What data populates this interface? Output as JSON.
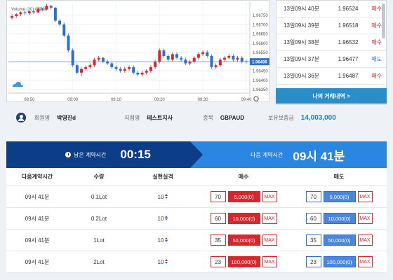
{
  "chart": {
    "legend_text": "Volume (20)",
    "legend_zero": "0",
    "legend_unit": "없음",
    "current_price_label": "1.96499",
    "y_ticks": [
      "1.96750",
      "1.96700",
      "1.96650",
      "1.96600",
      "1.96550",
      "1.96500",
      "1.96450",
      "1.96400",
      "1.96350"
    ],
    "x_ticks": [
      "08:50",
      "09:00",
      "09:10",
      "09:20",
      "09:30",
      "09:40"
    ],
    "colors": {
      "up": "#d8262c",
      "down": "#2b6fd6",
      "price_line": "#2b6fd6"
    },
    "icons": [
      "cloud-icon",
      "settings-icon"
    ]
  },
  "chart_data": {
    "type": "candlestick",
    "x": [
      "08:46",
      "08:47",
      "08:48",
      "08:49",
      "08:50",
      "08:51",
      "08:52",
      "08:53",
      "08:54",
      "08:55",
      "08:56",
      "08:57",
      "08:58",
      "08:59",
      "09:00",
      "09:01",
      "09:02",
      "09:03",
      "09:04",
      "09:05",
      "09:06",
      "09:07",
      "09:08",
      "09:09",
      "09:10",
      "09:11",
      "09:12",
      "09:13",
      "09:14",
      "09:15",
      "09:16",
      "09:17",
      "09:18",
      "09:19",
      "09:20",
      "09:21",
      "09:22",
      "09:23",
      "09:24",
      "09:25",
      "09:26",
      "09:27",
      "09:28",
      "09:29",
      "09:30",
      "09:31",
      "09:32",
      "09:33",
      "09:34",
      "09:35",
      "09:36",
      "09:37",
      "09:38",
      "09:39",
      "09:40"
    ],
    "open": [
      1.96735,
      1.96745,
      1.96755,
      1.96765,
      1.9676,
      1.9677,
      1.96765,
      1.96785,
      1.9678,
      1.968,
      1.9679,
      1.9672,
      1.967,
      1.9664,
      1.9656,
      1.9648,
      1.9644,
      1.9646,
      1.9647,
      1.9648,
      1.9651,
      1.9652,
      1.965,
      1.9649,
      1.9647,
      1.9646,
      1.9645,
      1.9646,
      1.9647,
      1.9644,
      1.9643,
      1.9644,
      1.9645,
      1.9647,
      1.965,
      1.9656,
      1.9653,
      1.9651,
      1.9654,
      1.9652,
      1.9651,
      1.9649,
      1.965,
      1.9652,
      1.9654,
      1.9655,
      1.9653,
      1.9647,
      1.9648,
      1.9651,
      1.9652,
      1.9653,
      1.9651,
      1.9652,
      1.965
    ],
    "close": [
      1.96745,
      1.96755,
      1.96765,
      1.9676,
      1.9677,
      1.96765,
      1.96785,
      1.9678,
      1.968,
      1.9679,
      1.9672,
      1.967,
      1.9664,
      1.9656,
      1.9648,
      1.9644,
      1.9646,
      1.9647,
      1.9648,
      1.9651,
      1.9652,
      1.965,
      1.9649,
      1.9647,
      1.9646,
      1.9645,
      1.9646,
      1.9647,
      1.9644,
      1.9643,
      1.9644,
      1.9645,
      1.9647,
      1.965,
      1.9656,
      1.9653,
      1.9651,
      1.9654,
      1.9652,
      1.9651,
      1.9649,
      1.965,
      1.9652,
      1.9654,
      1.9655,
      1.9653,
      1.9647,
      1.9648,
      1.9651,
      1.9652,
      1.9653,
      1.9651,
      1.9652,
      1.965,
      1.96499
    ],
    "high": [
      1.96755,
      1.9676,
      1.9677,
      1.96775,
      1.96775,
      1.9678,
      1.96795,
      1.9679,
      1.9681,
      1.96805,
      1.96795,
      1.9673,
      1.9671,
      1.9665,
      1.9657,
      1.9649,
      1.9647,
      1.9648,
      1.9649,
      1.9652,
      1.9653,
      1.96525,
      1.9651,
      1.965,
      1.9648,
      1.9647,
      1.9647,
      1.9648,
      1.9648,
      1.9645,
      1.9645,
      1.9646,
      1.9648,
      1.9651,
      1.9657,
      1.9657,
      1.9654,
      1.9655,
      1.9655,
      1.9653,
      1.9652,
      1.9651,
      1.9653,
      1.9655,
      1.9656,
      1.9656,
      1.9654,
      1.9649,
      1.9652,
      1.9653,
      1.9654,
      1.9654,
      1.9653,
      1.9653,
      1.9651
    ],
    "low": [
      1.96725,
      1.96735,
      1.96745,
      1.9675,
      1.9675,
      1.96755,
      1.9676,
      1.9677,
      1.96775,
      1.9678,
      1.9671,
      1.9669,
      1.9663,
      1.9655,
      1.9647,
      1.9643,
      1.9642,
      1.9645,
      1.9646,
      1.9647,
      1.965,
      1.9649,
      1.9648,
      1.9646,
      1.9645,
      1.9644,
      1.9644,
      1.9645,
      1.9643,
      1.9642,
      1.9642,
      1.9643,
      1.9644,
      1.9646,
      1.9649,
      1.9652,
      1.965,
      1.965,
      1.9651,
      1.965,
      1.9648,
      1.9648,
      1.9649,
      1.9651,
      1.9653,
      1.9652,
      1.9646,
      1.9646,
      1.9647,
      1.965,
      1.9651,
      1.965,
      1.965,
      1.9649,
      1.9649
    ],
    "ylim": [
      1.9633,
      1.9682
    ],
    "current_price": 1.96499,
    "grid": true
  },
  "trade_list": [
    {
      "time": "13일09시 40분",
      "price": "1.96524",
      "side": "매수",
      "type": "buy"
    },
    {
      "time": "13일09시 39분",
      "price": "1.96518",
      "side": "매수",
      "type": "buy"
    },
    {
      "time": "13일09시 38분",
      "price": "1.96532",
      "side": "매수",
      "type": "buy"
    },
    {
      "time": "13일09시 37분",
      "price": "1.96477",
      "side": "매도",
      "type": "sell"
    },
    {
      "time": "13일09시 36분",
      "price": "1.96487",
      "side": "매수",
      "type": "buy"
    }
  ],
  "my_trades_button": "나의 거래내역  >",
  "info": {
    "member_label": "회원명",
    "member_value": "박영진d",
    "branch_label": "지점명",
    "branch_value": "테스트지사",
    "symbol_label": "종목",
    "symbol_value": "GBPAUD",
    "balance_label": "보유보증금",
    "balance_value": "14,003,000"
  },
  "timer": {
    "remain_label": "남은 계약시간",
    "remain_value": "00:15",
    "next_label": "다음 계약시간",
    "next_value": "09시 41분"
  },
  "table": {
    "headers": {
      "time": "다음계약시간",
      "qty": "수량",
      "leverage": "실현실격",
      "buy": "매수",
      "sell": "매도"
    },
    "max_label": "MAX",
    "rows": [
      {
        "time": "09시 41분",
        "qty": "0.1Lot",
        "lev": "10",
        "buy_qty": "70",
        "buy_amt": "5,000(0)",
        "sell_qty": "70",
        "sell_amt": "5,000(0)"
      },
      {
        "time": "09시 41분",
        "qty": "0.2Lot",
        "lev": "10",
        "buy_qty": "60",
        "buy_amt": "10,000(0)",
        "sell_qty": "60",
        "sell_amt": "10,000(0)"
      },
      {
        "time": "09시 41분",
        "qty": "1Lot",
        "lev": "10",
        "buy_qty": "35",
        "buy_amt": "50,000(0)",
        "sell_qty": "35",
        "sell_amt": "50,000(0)"
      },
      {
        "time": "09시 41분",
        "qty": "2Lot",
        "lev": "10",
        "buy_qty": "23",
        "buy_amt": "100,000(0)",
        "sell_qty": "23",
        "sell_amt": "100,000(0)"
      }
    ]
  }
}
